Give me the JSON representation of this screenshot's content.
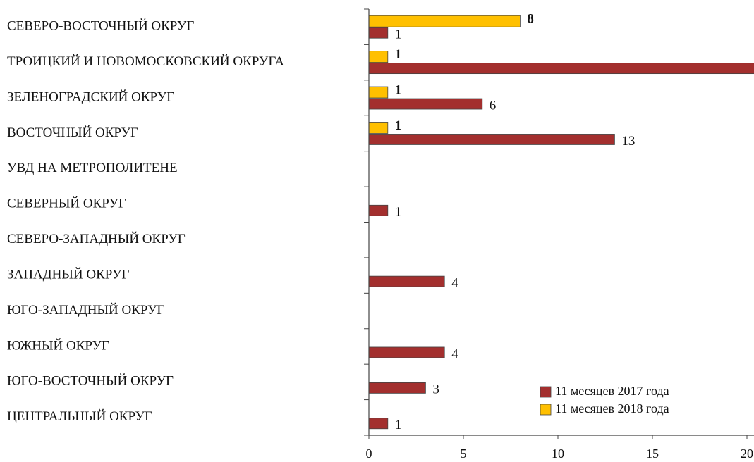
{
  "chart_data": {
    "type": "barh",
    "categories": [
      "СЕВЕРО-ВОСТОЧНЫЙ ОКРУГ",
      "ТРОИЦКИЙ И НОВОМОСКОВСКИЙ ОКРУГА",
      "ЗЕЛЕНОГРАДСКИЙ ОКРУГ",
      "ВОСТОЧНЫЙ ОКРУГ",
      "УВД НА МЕТРОПОЛИТЕНЕ",
      "СЕВЕРНЫЙ ОКРУГ",
      "СЕВЕРО-ЗАПАДНЫЙ ОКРУГ",
      "ЗАПАДНЫЙ ОКРУГ",
      "ЮГО-ЗАПАДНЫЙ ОКРУГ",
      "ЮЖНЫЙ ОКРУГ",
      "ЮГО-ВОСТОЧНЫЙ ОКРУГ",
      "ЦЕНТРАЛЬНЫЙ ОКРУГ"
    ],
    "series": [
      {
        "name": "11 месяцев 2017 года",
        "color": "#a32f2e",
        "values": [
          1,
          21,
          6,
          13,
          null,
          1,
          null,
          4,
          null,
          4,
          3,
          1
        ]
      },
      {
        "name": "11 месяцев 2018 года",
        "color": "#ffc000",
        "values": [
          8,
          1,
          1,
          1,
          null,
          null,
          null,
          null,
          null,
          null,
          null,
          null
        ]
      }
    ],
    "xlim": [
      0,
      20.4
    ],
    "xticks": [
      0,
      5,
      10,
      15,
      20
    ],
    "legend": "lower right"
  }
}
